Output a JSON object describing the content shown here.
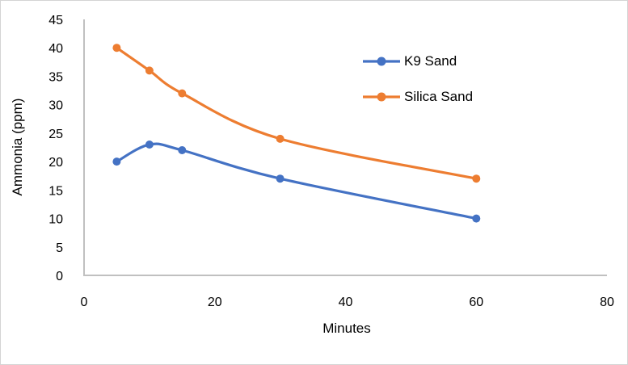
{
  "chart_data": {
    "type": "line",
    "title": "",
    "xlabel": "Minutes",
    "ylabel": "Ammonia (ppm)",
    "x": [
      5,
      10,
      15,
      30,
      60
    ],
    "series": [
      {
        "name": "K9 Sand",
        "color": "#4472C4",
        "values": [
          20,
          23,
          22,
          17,
          10
        ]
      },
      {
        "name": "Silica Sand",
        "color": "#ED7D31",
        "values": [
          40,
          36,
          32,
          24,
          17
        ]
      }
    ],
    "xlim": [
      0,
      80
    ],
    "ylim": [
      0,
      45
    ],
    "x_ticks": [
      0,
      20,
      40,
      60,
      80
    ],
    "y_ticks": [
      0,
      5,
      10,
      15,
      20,
      25,
      30,
      35,
      40,
      45
    ],
    "grid": false,
    "legend_position": "inside-top-right",
    "line_style": "smooth",
    "marker": "circle"
  },
  "style": {
    "axis_color": "#c0c0c0",
    "text_color": "#000000",
    "background": "#ffffff",
    "border_color": "#d4d4d4"
  }
}
